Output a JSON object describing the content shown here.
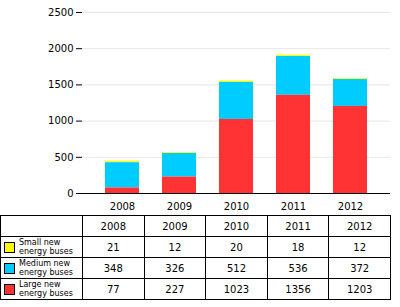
{
  "chart_data": {
    "type": "bar",
    "stacked": true,
    "categories": [
      "2008",
      "2009",
      "2010",
      "2011",
      "2012"
    ],
    "series": [
      {
        "name": "Small new\nenergy buses",
        "color": "#ffff00",
        "values": [
          21,
          12,
          20,
          18,
          12
        ]
      },
      {
        "name": "Medium new\nenergy buses",
        "color": "#00ccff",
        "values": [
          348,
          326,
          512,
          536,
          372
        ]
      },
      {
        "name": "Large new\nenergy buses",
        "color": "#ff3333",
        "values": [
          77,
          227,
          1023,
          1356,
          1203
        ]
      }
    ],
    "ylim": [
      0,
      2500
    ],
    "yticks": [
      0,
      500,
      1000,
      1500,
      2000,
      2500
    ],
    "grid": true,
    "legend": "bottom"
  }
}
